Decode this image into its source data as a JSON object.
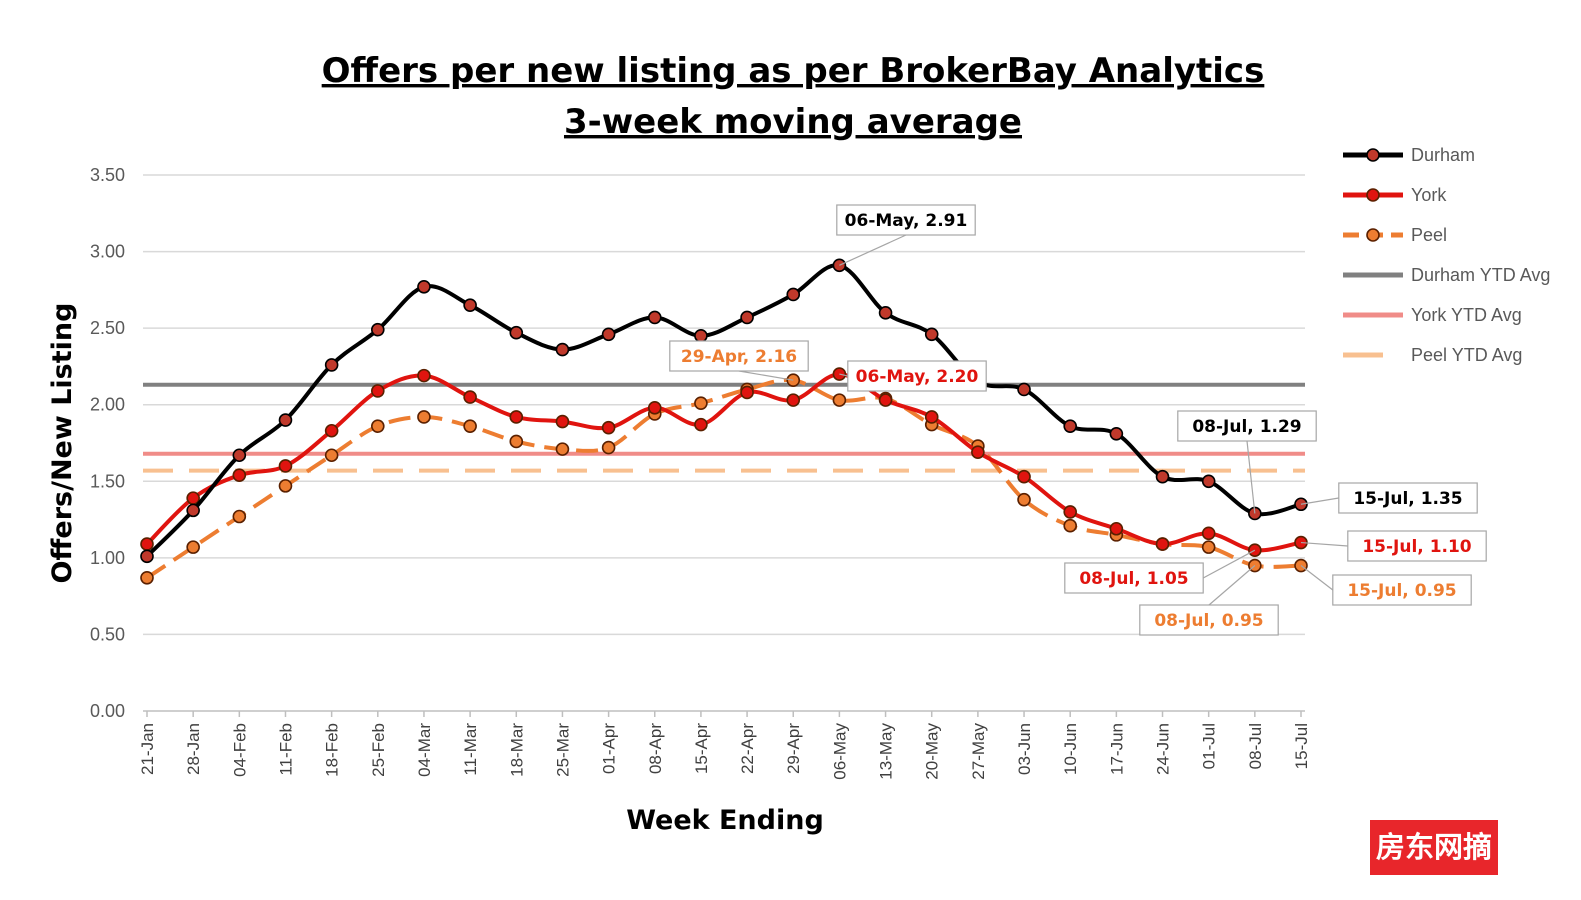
{
  "chart_data": {
    "type": "line",
    "title": "Offers per new listing as per BrokerBay Analytics",
    "subtitle": "3-week moving average",
    "xlabel": "Week Ending",
    "ylabel": "Offers/New Listing",
    "ylim": [
      0,
      3.5
    ],
    "y_ticks": [
      "0.00",
      "0.50",
      "1.00",
      "1.50",
      "2.00",
      "2.50",
      "3.00",
      "3.50"
    ],
    "grid": "horizontal",
    "legend_position": "right",
    "categories": [
      "21-Jan",
      "28-Jan",
      "04-Feb",
      "11-Feb",
      "18-Feb",
      "25-Feb",
      "04-Mar",
      "11-Mar",
      "18-Mar",
      "25-Mar",
      "01-Apr",
      "08-Apr",
      "15-Apr",
      "22-Apr",
      "29-Apr",
      "06-May",
      "13-May",
      "20-May",
      "27-May",
      "03-Jun",
      "10-Jun",
      "17-Jun",
      "24-Jun",
      "01-Jul",
      "08-Jul",
      "15-Jul"
    ],
    "series": [
      {
        "name": "Durham",
        "color": "#000000",
        "style": "solid-markers",
        "values": [
          1.01,
          1.31,
          1.67,
          1.9,
          2.26,
          2.49,
          2.77,
          2.65,
          2.47,
          2.36,
          2.46,
          2.57,
          2.45,
          2.57,
          2.72,
          2.91,
          2.6,
          2.46,
          2.15,
          2.1,
          1.86,
          1.81,
          1.53,
          1.5,
          1.29,
          1.35
        ]
      },
      {
        "name": "York",
        "color": "#e0140f",
        "style": "solid-markers",
        "values": [
          1.09,
          1.39,
          1.54,
          1.6,
          1.83,
          2.09,
          2.19,
          2.05,
          1.92,
          1.89,
          1.85,
          1.98,
          1.87,
          2.08,
          2.03,
          2.2,
          2.03,
          1.92,
          1.69,
          1.53,
          1.3,
          1.19,
          1.09,
          1.16,
          1.05,
          1.1
        ]
      },
      {
        "name": "Peel",
        "color": "#ed7d31",
        "style": "dashed-markers",
        "values": [
          0.87,
          1.07,
          1.27,
          1.47,
          1.67,
          1.86,
          1.92,
          1.86,
          1.76,
          1.71,
          1.72,
          1.94,
          2.01,
          2.1,
          2.16,
          2.03,
          2.04,
          1.87,
          1.73,
          1.38,
          1.21,
          1.15,
          1.09,
          1.07,
          0.95,
          0.95
        ]
      },
      {
        "name": "Durham YTD Avg",
        "color": "#808080",
        "style": "solid",
        "value": 2.13
      },
      {
        "name": "York YTD Avg",
        "color": "#f08c88",
        "style": "solid",
        "value": 1.68
      },
      {
        "name": "Peel YTD Avg",
        "color": "#f8c090",
        "style": "dashed",
        "value": 1.57
      }
    ],
    "annotations": [
      {
        "label": "06-May, 2.91",
        "series": 0,
        "index": 15,
        "color": "#000000"
      },
      {
        "label": "29-Apr, 2.16",
        "series": 2,
        "index": 14,
        "color": "#ed7d31"
      },
      {
        "label": "06-May, 2.20",
        "series": 1,
        "index": 15,
        "color": "#e0140f"
      },
      {
        "label": "08-Jul, 1.29",
        "series": 0,
        "index": 24,
        "color": "#000000"
      },
      {
        "label": "15-Jul, 1.35",
        "series": 0,
        "index": 25,
        "color": "#000000"
      },
      {
        "label": "15-Jul, 1.10",
        "series": 1,
        "index": 25,
        "color": "#e0140f"
      },
      {
        "label": "08-Jul, 1.05",
        "series": 1,
        "index": 24,
        "color": "#e0140f"
      },
      {
        "label": "15-Jul, 0.95",
        "series": 2,
        "index": 25,
        "color": "#ed7d31"
      },
      {
        "label": "08-Jul, 0.95",
        "series": 2,
        "index": 24,
        "color": "#ed7d31"
      }
    ]
  },
  "watermark": "房东网摘"
}
